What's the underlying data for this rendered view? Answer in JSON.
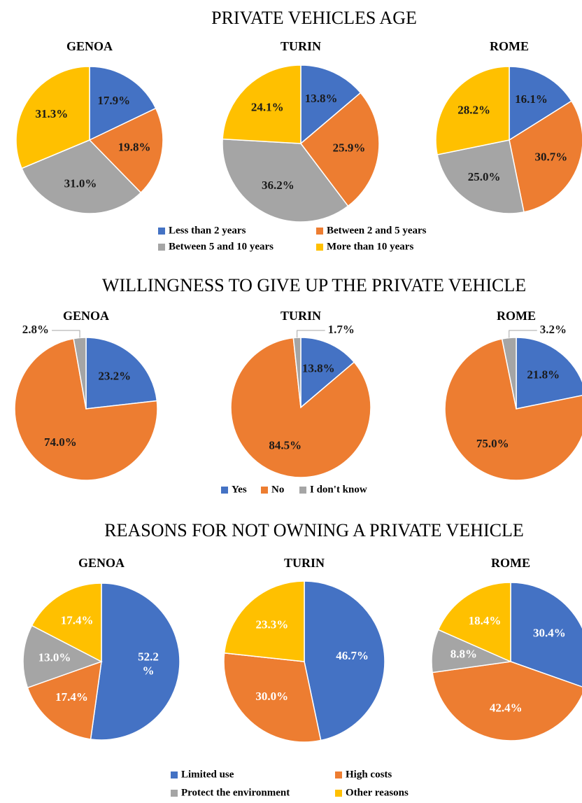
{
  "chart_data": [
    {
      "type": "pie",
      "title": "PRIVATE VEHICLES AGE",
      "categories": [
        "Less than 2 years",
        "Between 2 and 5 years",
        "Between 5 and 10 years",
        "More than 10 years"
      ],
      "colors": [
        "#4472c4",
        "#ed7d31",
        "#a5a5a5",
        "#ffc000"
      ],
      "label_color": "#1a1a1a",
      "pies": [
        {
          "title": "GENOA",
          "values": [
            17.9,
            19.8,
            31.0,
            31.3
          ],
          "value_labels": [
            "17.9%",
            "19.8%",
            "31.0%",
            "31.3%"
          ]
        },
        {
          "title": "TURIN",
          "values": [
            13.8,
            25.9,
            36.2,
            24.1
          ],
          "value_labels": [
            "13.8%",
            "25.9%",
            "36.2%",
            "24.1%"
          ]
        },
        {
          "title": "ROME",
          "values": [
            16.1,
            30.7,
            25.0,
            28.2
          ],
          "value_labels": [
            "16.1%",
            "30.7%",
            "25.0%",
            "28.2%"
          ]
        }
      ]
    },
    {
      "type": "pie",
      "title": "WILLINGNESS TO GIVE UP THE PRIVATE VEHICLE",
      "categories": [
        "Yes",
        "No",
        "I don't know"
      ],
      "colors": [
        "#4472c4",
        "#ed7d31",
        "#a5a5a5"
      ],
      "label_color": "#1a1a1a",
      "pies": [
        {
          "title": "GENOA",
          "values": [
            23.2,
            74.0,
            2.8
          ],
          "value_labels": [
            "23.2%",
            "74.0%",
            "2.8%"
          ]
        },
        {
          "title": "TURIN",
          "values": [
            13.8,
            84.5,
            1.7
          ],
          "value_labels": [
            "13.8%",
            "84.5%",
            "1.7%"
          ]
        },
        {
          "title": "ROME",
          "values": [
            21.8,
            75.0,
            3.2
          ],
          "value_labels": [
            "21.8%",
            "75.0%",
            "3.2%"
          ]
        }
      ]
    },
    {
      "type": "pie",
      "title": "REASONS FOR NOT OWNING A PRIVATE VEHICLE",
      "categories": [
        "Limited use",
        "High costs",
        "Protect the environment",
        "Other reasons"
      ],
      "colors": [
        "#4472c4",
        "#ed7d31",
        "#a5a5a5",
        "#ffc000"
      ],
      "label_color": "#ffffff",
      "pies": [
        {
          "title": "GENOA",
          "values": [
            52.2,
            17.4,
            13.0,
            17.4
          ],
          "value_labels": [
            "52.2\n%",
            "17.4%",
            "13.0%",
            "17.4%"
          ]
        },
        {
          "title": "TURIN",
          "values": [
            46.7,
            30.0,
            0,
            23.3
          ],
          "value_labels": [
            "46.7%",
            "30.0%",
            null,
            "23.3%"
          ]
        },
        {
          "title": "ROME",
          "values": [
            30.4,
            42.4,
            8.8,
            18.4
          ],
          "value_labels": [
            "30.4%",
            "42.4%",
            "8.8%",
            "18.4%"
          ]
        }
      ]
    }
  ]
}
